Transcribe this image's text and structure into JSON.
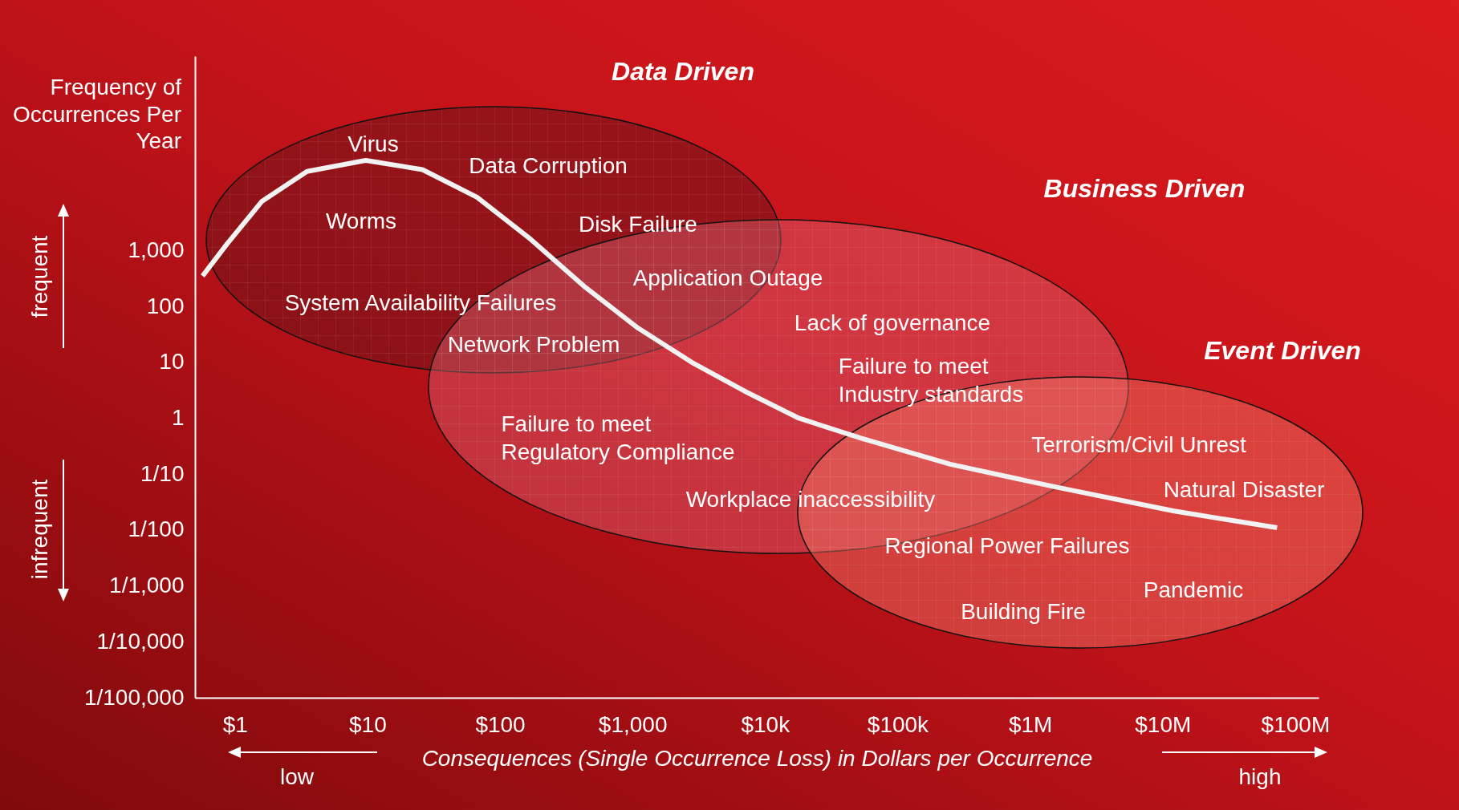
{
  "chart_data": {
    "type": "line",
    "xlabel": "Consequences (Single Occurrence Loss) in Dollars per Occurrence",
    "ylabel": "Frequency of Occurrences Per Year",
    "log": "xy",
    "xlim": [
      0.5,
      150000000
    ],
    "ylim": [
      1e-05,
      3000000
    ],
    "xticks": [
      {
        "value": 1,
        "label": "$1"
      },
      {
        "value": 10,
        "label": "$10"
      },
      {
        "value": 100,
        "label": "$100"
      },
      {
        "value": 1000,
        "label": "$1,000"
      },
      {
        "value": 10000,
        "label": "$10k"
      },
      {
        "value": 100000,
        "label": "$100k"
      },
      {
        "value": 1000000,
        "label": "$1M"
      },
      {
        "value": 10000000,
        "label": "$10M"
      },
      {
        "value": 100000000,
        "label": "$100M"
      }
    ],
    "yticks": [
      {
        "value": 1e-05,
        "label": "1/100,000"
      },
      {
        "value": 0.0001,
        "label": "1/10,000"
      },
      {
        "value": 0.001,
        "label": "1/1,000"
      },
      {
        "value": 0.01,
        "label": "1/100"
      },
      {
        "value": 0.1,
        "label": "1/10"
      },
      1,
      10,
      100,
      {
        "value": 1000,
        "label": "1,000"
      }
    ],
    "series": [
      {
        "color": "#f2f2f2",
        "x": [
          0.57,
          0.87,
          1.6,
          3.5,
          9.7,
          26,
          67,
          170,
          430,
          1100,
          2800,
          7100,
          18000,
          53000,
          250000,
          1600000,
          12000000,
          73000000
        ],
        "values": [
          350,
          1300,
          7600,
          26000,
          41000,
          28000,
          9000,
          1600,
          230,
          41,
          10,
          3,
          1,
          0.44,
          0.15,
          0.058,
          0.022,
          0.011
        ]
      }
    ],
    "annotations": [
      "Data Driven",
      "Business Driven",
      "Event Driven",
      "Virus",
      "Data Corruption",
      "Worms",
      "Disk Failure",
      "Application Outage",
      "System Availability Failures",
      "Lack of governance",
      "Network Problem",
      "Failure to meet\nIndustry standards",
      "Failure to meet\nRegulatory Compliance",
      "Terrorism/Civil Unrest",
      "Workplace inaccessibility",
      "Natural Disaster",
      "Regional Power Failures",
      "Pandemic",
      "Building Fire",
      "frequent",
      "infrequent",
      "low",
      "high"
    ]
  }
}
